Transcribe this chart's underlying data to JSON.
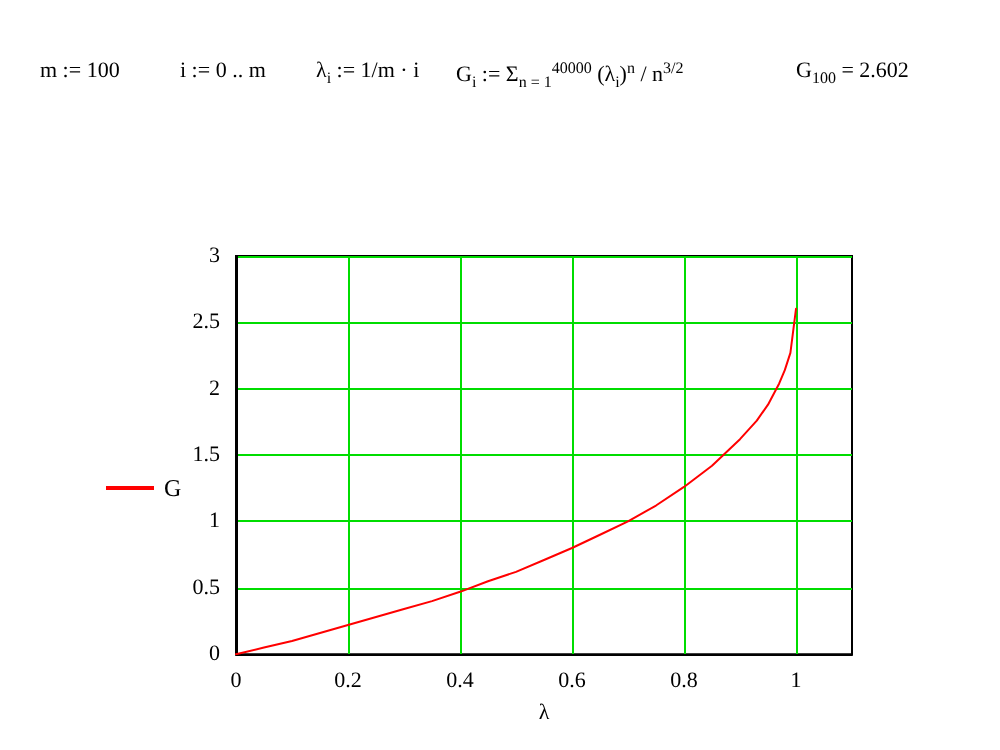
{
  "chart_data": {
    "type": "line",
    "annotations": [
      "m := 100",
      "i := 0 .. m",
      "λ$_{i}$ := 1/m · i",
      "G$_{i}$ := Σ$_{n = 1}$$^{40000}$ (λ$_{i}$)$^{n}$ / n$^{3/2}$",
      "G$_{100}$ = 2.602"
    ],
    "xlabel": "λ",
    "x": [
      0,
      0.05,
      0.1,
      0.15,
      0.2,
      0.25,
      0.3,
      0.35,
      0.4,
      0.45,
      0.5,
      0.55,
      0.6,
      0.65,
      0.7,
      0.75,
      0.8,
      0.85,
      0.9,
      0.93,
      0.95,
      0.97,
      0.98,
      0.99,
      1.0
    ],
    "series": [
      {
        "name": "G",
        "color": "#ff0000",
        "values": [
          0,
          0.05,
          0.1,
          0.16,
          0.22,
          0.28,
          0.34,
          0.4,
          0.47,
          0.55,
          0.62,
          0.71,
          0.8,
          0.9,
          1.0,
          1.12,
          1.26,
          1.42,
          1.62,
          1.76,
          1.88,
          2.04,
          2.14,
          2.27,
          2.602
        ]
      }
    ],
    "xlim": [
      0,
      1.1
    ],
    "xticks": [
      0,
      0.2,
      0.4,
      0.6,
      0.8,
      1
    ],
    "ylim": [
      0,
      3
    ],
    "yticks": [
      0,
      0.5,
      1,
      1.5,
      2,
      2.5,
      3
    ],
    "grid": true,
    "legend": "left",
    "marker": "none",
    "line_style": "solid"
  }
}
